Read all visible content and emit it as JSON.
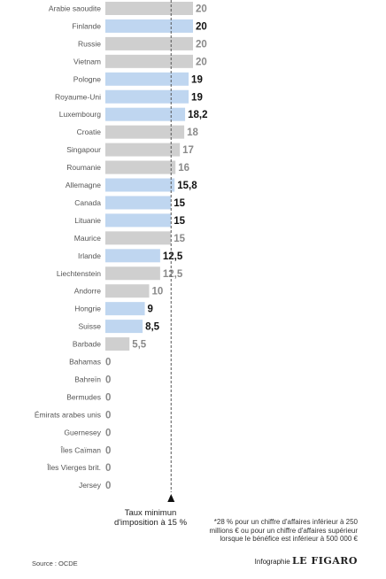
{
  "chart_data": {
    "type": "bar",
    "orientation": "horizontal",
    "categories": [
      "Arabie saoudite",
      "Finlande",
      "Russie",
      "Vietnam",
      "Pologne",
      "Royaume-Uni",
      "Luxembourg",
      "Croatie",
      "Singapour",
      "Roumanie",
      "Allemagne",
      "Canada",
      "Lituanie",
      "Maurice",
      "Irlande",
      "Liechtenstein",
      "Andorre",
      "Hongrie",
      "Suisse",
      "Barbade",
      "Bahamas",
      "Bahreïn",
      "Bermudes",
      "Émirats arabes unis",
      "Guernesey",
      "Îles Caïman",
      "Îles Vierges brit.",
      "Jersey"
    ],
    "values": [
      20,
      20,
      20,
      20,
      19,
      19,
      18.2,
      18,
      17,
      16,
      15.8,
      15,
      15,
      15,
      12.5,
      12.5,
      10,
      9,
      8.5,
      5.5,
      0,
      0,
      0,
      0,
      0,
      0,
      0,
      0
    ],
    "value_labels": [
      "20",
      "20",
      "20",
      "20",
      "19",
      "19",
      "18,2",
      "18",
      "17",
      "16",
      "15,8",
      "15",
      "15",
      "15",
      "12,5",
      "12,5",
      "10",
      "9",
      "8,5",
      "5,5",
      "0",
      "0",
      "0",
      "0",
      "0",
      "0",
      "0",
      "0"
    ],
    "highlighted": [
      false,
      true,
      false,
      false,
      true,
      true,
      true,
      false,
      false,
      false,
      true,
      true,
      true,
      false,
      true,
      false,
      false,
      true,
      true,
      false,
      false,
      false,
      false,
      false,
      false,
      false,
      false,
      false
    ],
    "colors": {
      "highlight_bar": "#bfd6f0",
      "other_bar": "#cfcfcf",
      "highlight_text": "#111111",
      "other_text": "#8a8a8a"
    },
    "threshold": {
      "value": 15,
      "label": "Taux minimun d'imposition à 15 %"
    },
    "xlim": [
      0,
      20
    ],
    "grid": false
  },
  "footnote": "*28 % pour un chiffre d'affaires inférieur à 250 millions € ou pour un chiffre d'affaires supérieur lorsque le bénéfice est inférieur à 500 000 €",
  "source": "Source : OCDE",
  "credit": {
    "prefix": "Infographie",
    "brand": "LE FIGARO"
  }
}
